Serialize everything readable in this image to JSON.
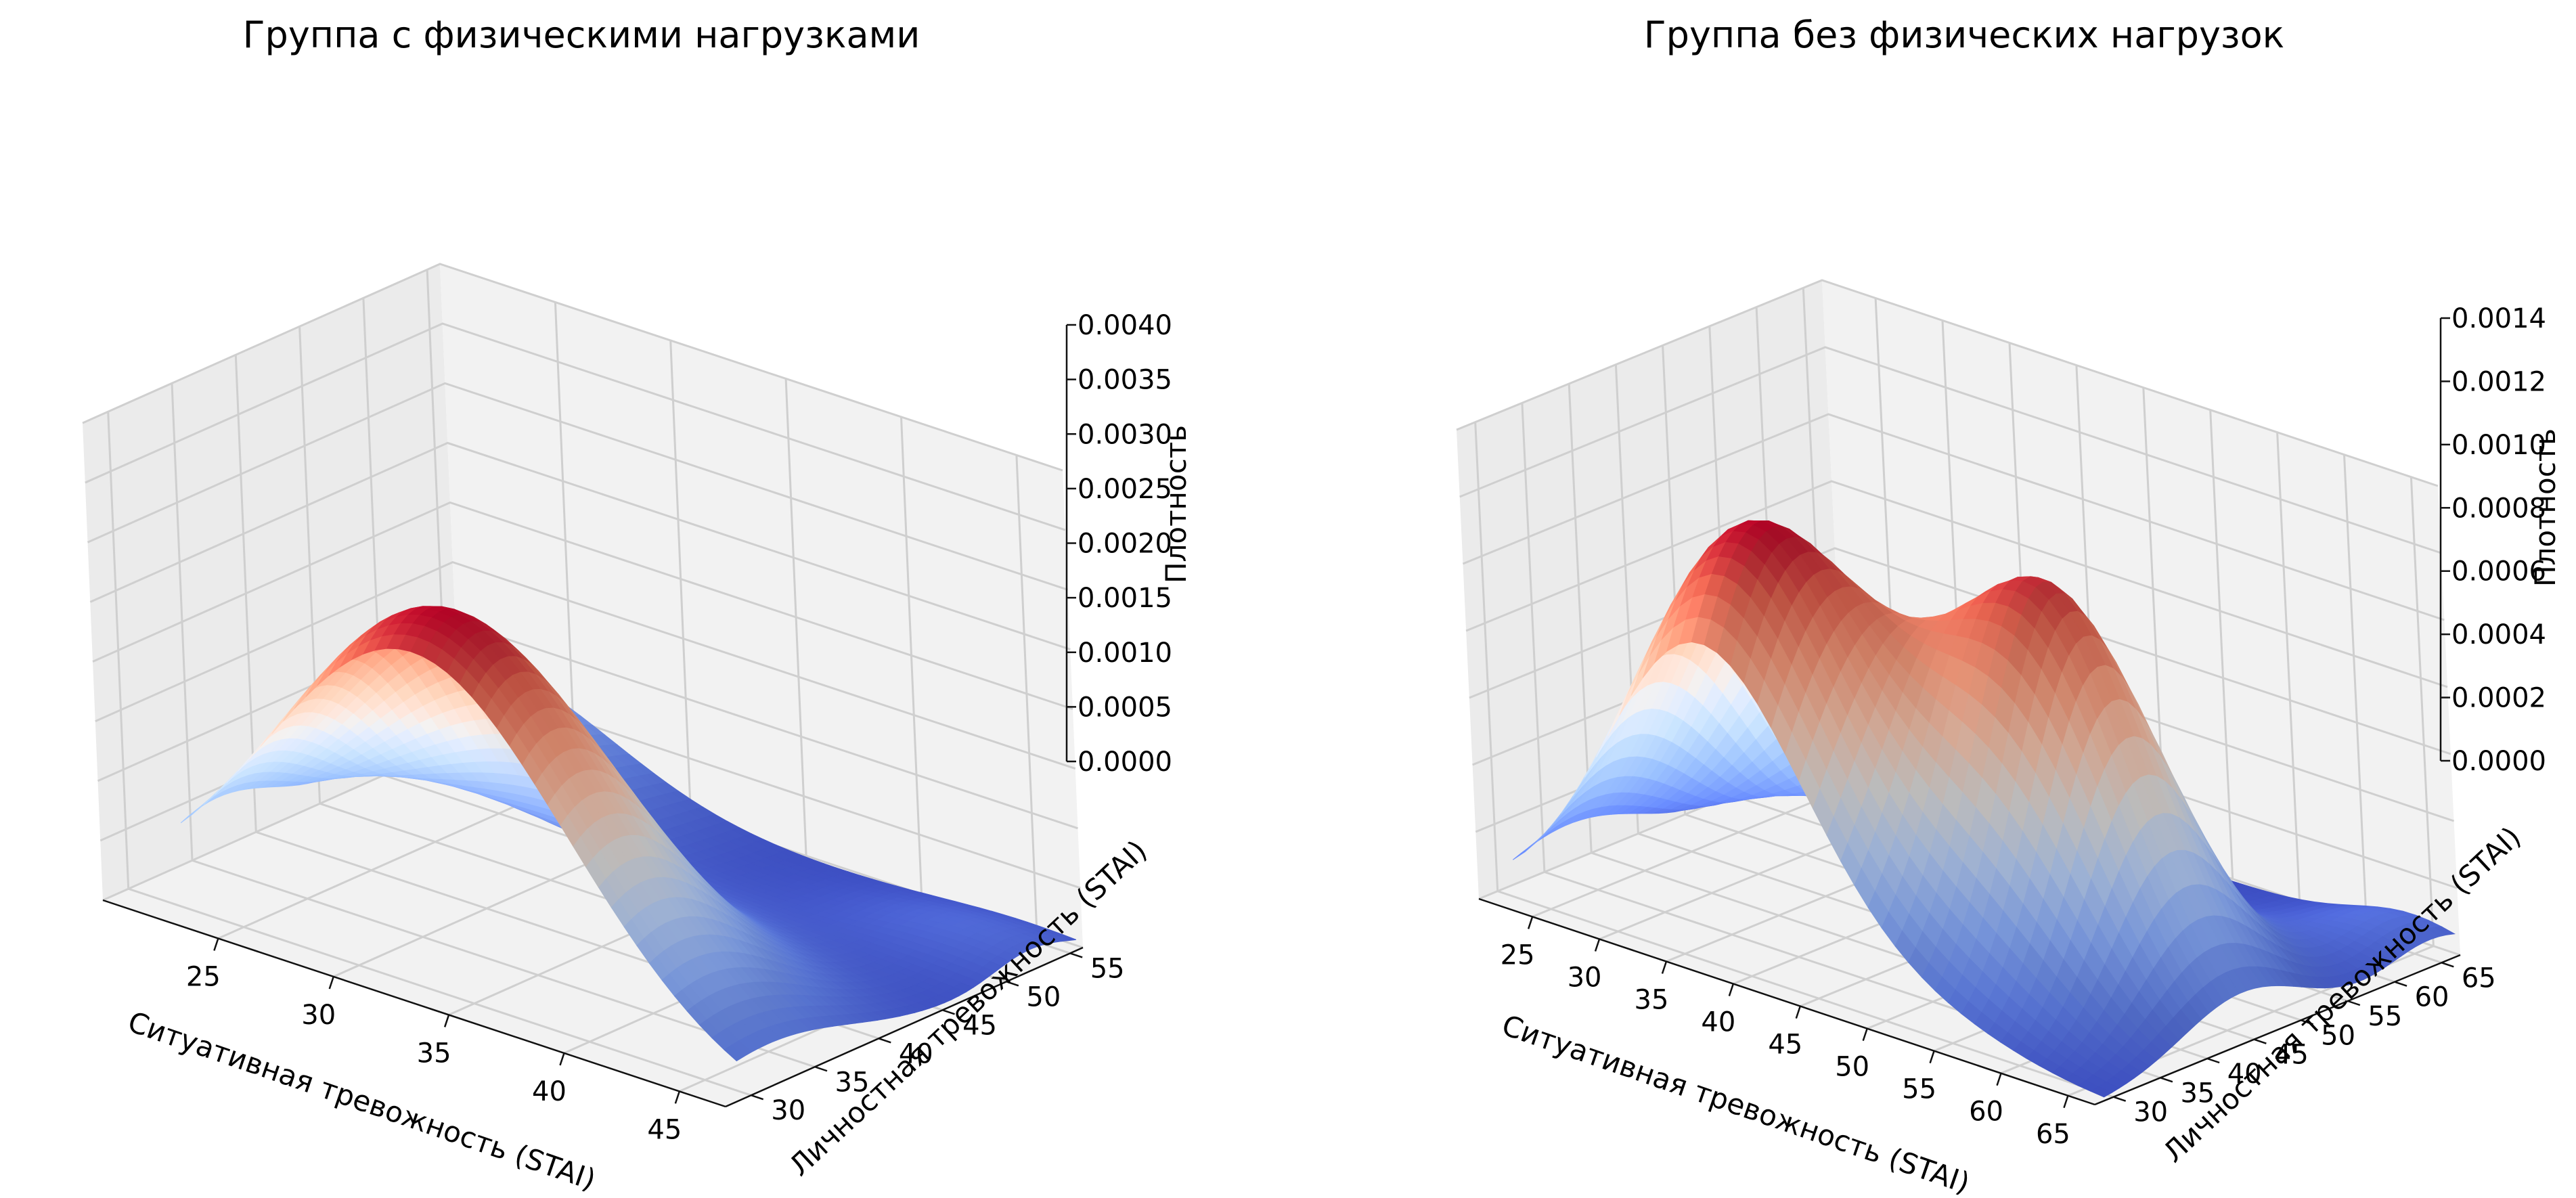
{
  "chart_data": [
    {
      "type": "surface3d",
      "title": "Группа с физическими нагрузками",
      "xlabel": "Ситуативная тревожность (STAI)",
      "ylabel": "Личностная тревожность (STAI)",
      "zlabel": "Плотность",
      "xlim": [
        20,
        47
      ],
      "ylim": [
        28,
        56
      ],
      "zlim": [
        0,
        0.004
      ],
      "x_ticks": [
        25,
        30,
        35,
        40,
        45
      ],
      "y_ticks": [
        30,
        35,
        40,
        45,
        50,
        55
      ],
      "z_ticks": [
        0,
        0.0005,
        0.001,
        0.0015,
        0.002,
        0.0025,
        0.003,
        0.0035,
        0.004
      ],
      "z_tick_labels": [
        "0.0000",
        "0.0005",
        "0.0010",
        "0.0015",
        "0.0020",
        "0.0025",
        "0.0030",
        "0.0035",
        "0.0040"
      ],
      "colormap": "coolwarm",
      "grid": true,
      "surface_peaks": [
        {
          "x": 33.5,
          "y": 31.5,
          "sx": 6.5,
          "sy": 6.5,
          "amp": 0.00312
        },
        {
          "x": 22.0,
          "y": 51.0,
          "sx": 5.0,
          "sy": 7.0,
          "amp": 0.00095
        },
        {
          "x": 45.0,
          "y": 52.0,
          "sx": 4.0,
          "sy": 3.0,
          "amp": 0.0002
        }
      ]
    },
    {
      "type": "surface3d",
      "title": "Группа без физических нагрузок",
      "xlabel": "Ситуативная тревожность (STAI)",
      "ylabel": "Личностная тревожность (STAI)",
      "zlabel": "Плотность",
      "xlim": [
        21,
        67
      ],
      "ylim": [
        28,
        67
      ],
      "zlim": [
        0,
        0.0014
      ],
      "x_ticks": [
        25,
        30,
        35,
        40,
        45,
        50,
        55,
        60,
        65
      ],
      "y_ticks": [
        30,
        35,
        40,
        45,
        50,
        55,
        60,
        65
      ],
      "z_ticks": [
        0,
        0.0002,
        0.0004,
        0.0006,
        0.0008,
        0.001,
        0.0012,
        0.0014
      ],
      "z_tick_labels": [
        "0.0000",
        "0.0002",
        "0.0004",
        "0.0006",
        "0.0008",
        "0.0010",
        "0.0012",
        "0.0014"
      ],
      "colormap": "coolwarm",
      "grid": true,
      "surface_peaks": [
        {
          "x": 38.0,
          "y": 35.0,
          "sx": 7.5,
          "sy": 8.5,
          "amp": 0.00125
        },
        {
          "x": 54.0,
          "y": 44.0,
          "sx": 6.5,
          "sy": 6.5,
          "amp": 0.00112
        },
        {
          "x": 25.0,
          "y": 60.0,
          "sx": 5.0,
          "sy": 5.0,
          "amp": 0.00035
        },
        {
          "x": 64.0,
          "y": 64.0,
          "sx": 4.5,
          "sy": 4.5,
          "amp": 0.0001
        }
      ]
    }
  ]
}
